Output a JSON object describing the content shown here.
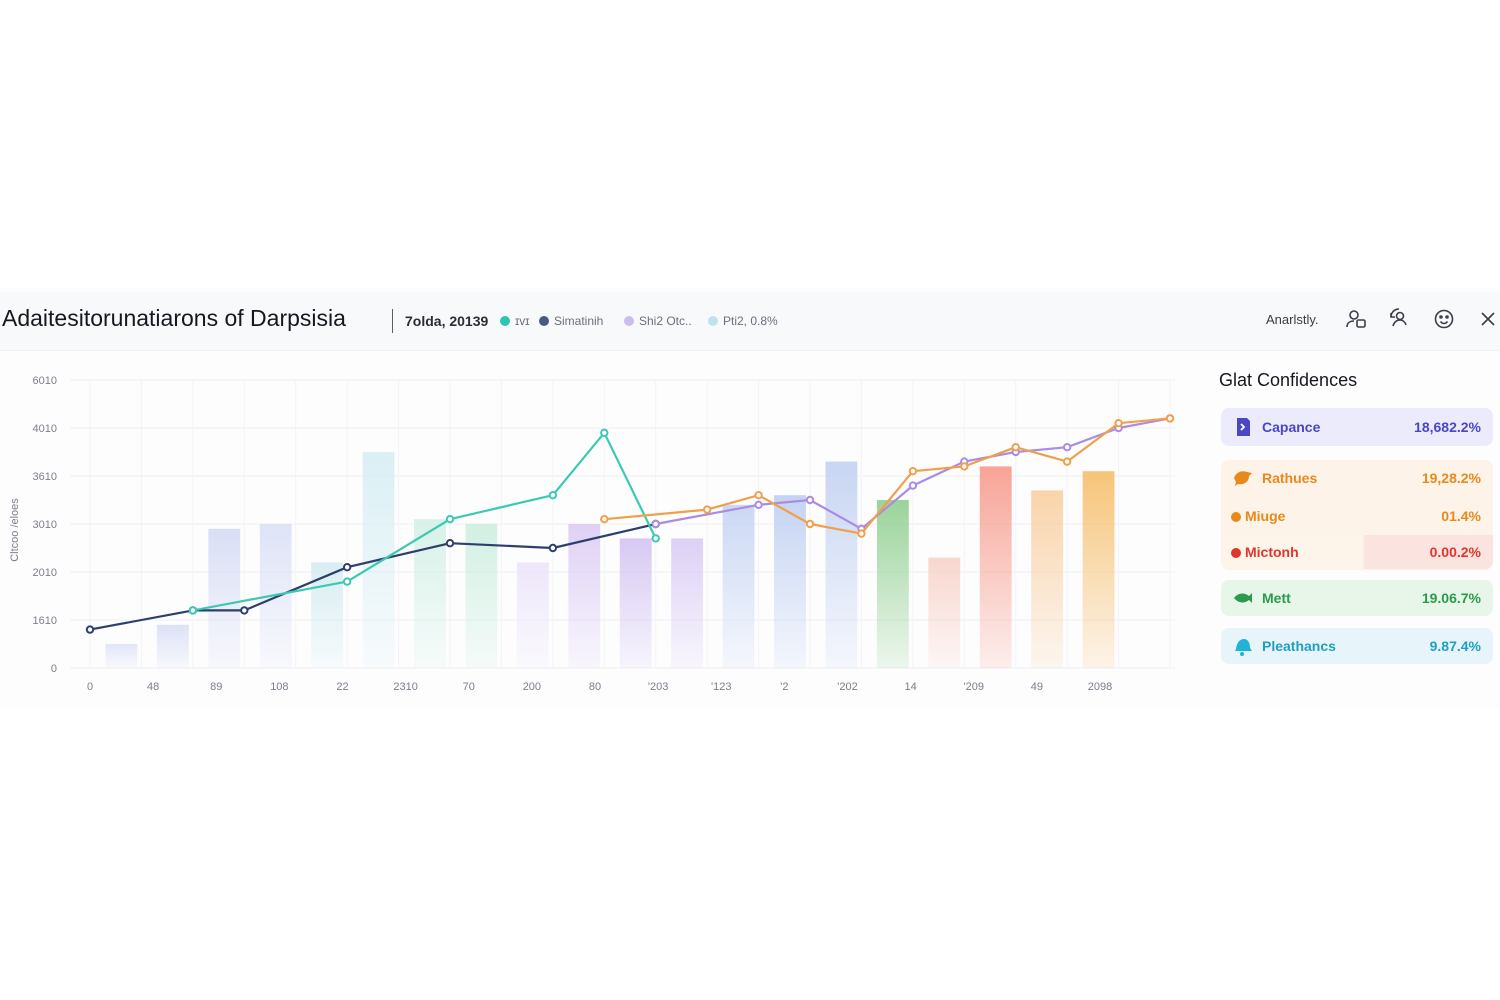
{
  "header": {
    "title": "Adaitesitorunatiarons of Darpsisia",
    "date": "7olda, 20139",
    "legend": [
      {
        "label": "ɪvɪ",
        "color": "#2ec4b6"
      },
      {
        "label": "Simatinih",
        "color": "#4a5a86"
      },
      {
        "label": "Shi2 Otc..",
        "color": "#cbbdf2"
      },
      {
        "label": "Pti2, 0.8%",
        "color": "#bfe3ee"
      }
    ],
    "analytics_label": "Anarlstly.",
    "icons": [
      "user-settings-icon",
      "refresh-user-icon",
      "emoji-icon",
      "close-icon"
    ]
  },
  "chart_data": {
    "type": "line",
    "y_ticks": [
      "6010",
      "4010",
      "3610",
      "3010",
      "2010",
      "1610",
      "0"
    ],
    "x_ticks": [
      "0",
      "48",
      "89",
      "108",
      "22",
      "2310",
      "70",
      "200",
      "80",
      "'203",
      "'123",
      "'2",
      "'202",
      "14",
      "'209",
      "49",
      "2098"
    ],
    "ylabel": "Cltcoo /eloes",
    "bars": [
      {
        "cat": 0,
        "value": 500,
        "color": "#dfe3f6"
      },
      {
        "cat": 1,
        "value": 900,
        "color": "#d9def4"
      },
      {
        "cat": 2,
        "value": 2900,
        "color": "#d6dbf4"
      },
      {
        "cat": 3,
        "value": 3000,
        "color": "#dbe0f6"
      },
      {
        "cat": 4,
        "value": 2200,
        "color": "#d4ecf1"
      },
      {
        "cat": 5,
        "value": 4500,
        "color": "#d6eef3"
      },
      {
        "cat": 6,
        "value": 3100,
        "color": "#d3f0e6"
      },
      {
        "cat": 7,
        "value": 3000,
        "color": "#cdeedf"
      },
      {
        "cat": 8,
        "value": 2200,
        "color": "#ece4fa"
      },
      {
        "cat": 9,
        "value": 3000,
        "color": "#dcccf4"
      },
      {
        "cat": 10,
        "value": 2700,
        "color": "#d3c3f2"
      },
      {
        "cat": 11,
        "value": 2700,
        "color": "#dacbf4"
      },
      {
        "cat": 12,
        "value": 3400,
        "color": "#c6d4f3"
      },
      {
        "cat": 13,
        "value": 3600,
        "color": "#bfcff2"
      },
      {
        "cat": 14,
        "value": 4300,
        "color": "#c2d1f2"
      },
      {
        "cat": 15,
        "value": 3500,
        "color": "#8fcf8f"
      },
      {
        "cat": 16,
        "value": 2300,
        "color": "#f8d2c8"
      },
      {
        "cat": 17,
        "value": 4200,
        "color": "#f79a8b"
      },
      {
        "cat": 18,
        "value": 3700,
        "color": "#f9cfa0"
      },
      {
        "cat": 19,
        "value": 4100,
        "color": "#f6be6b"
      }
    ],
    "series": [
      {
        "name": "Simatinih",
        "color": "#2e3f6e",
        "points": [
          [
            0,
            800
          ],
          [
            2,
            1200
          ],
          [
            3,
            1200
          ],
          [
            5,
            2100
          ],
          [
            7,
            2600
          ],
          [
            9,
            2500
          ],
          [
            11,
            3000
          ]
        ]
      },
      {
        "name": "ɪvɪ",
        "color": "#3cc9b1",
        "points": [
          [
            2,
            1200
          ],
          [
            5,
            1800
          ],
          [
            7,
            3100
          ],
          [
            9,
            3600
          ],
          [
            10,
            4900
          ],
          [
            11,
            2700
          ]
        ]
      },
      {
        "name": "Shi2 Otc..",
        "color": "#a98ce4",
        "points": [
          [
            11,
            3000
          ],
          [
            13,
            3400
          ],
          [
            14,
            3500
          ],
          [
            15,
            2900
          ],
          [
            16,
            3800
          ],
          [
            17,
            4300
          ],
          [
            18,
            4500
          ],
          [
            19,
            4600
          ],
          [
            20,
            5000
          ],
          [
            21,
            5200
          ]
        ]
      },
      {
        "name": "Pti2, 0.8%",
        "color": "#f0a04b",
        "points": [
          [
            10,
            3100
          ],
          [
            12,
            3300
          ],
          [
            13,
            3600
          ],
          [
            14,
            3000
          ],
          [
            15,
            2800
          ],
          [
            16,
            4100
          ],
          [
            17,
            4200
          ],
          [
            18,
            4600
          ],
          [
            19,
            4300
          ],
          [
            20,
            5100
          ],
          [
            21,
            5200
          ]
        ]
      }
    ]
  },
  "confidences": {
    "title": "Glat Confidences",
    "cards": [
      {
        "rows": [
          {
            "name": "Capance",
            "value": "18,682.2%",
            "color": "#4b46c6",
            "icon": "map-marker-icon",
            "bg": "#ecebfb"
          }
        ]
      },
      {
        "rows": [
          {
            "name": "Rathues",
            "value": "19,28.2%",
            "color": "#e8891b",
            "icon": "bird-icon",
            "bg": "#fdf2e6"
          },
          {
            "name": "Miuge",
            "value": "01.4%",
            "color": "#e8891b",
            "icon": "dot",
            "bg": "#fdf4ea"
          },
          {
            "name": "Mictonh",
            "value": "0.00.2%",
            "color": "#e0362b",
            "icon": "dot",
            "bg": "#fbe9e6"
          }
        ]
      },
      {
        "rows": [
          {
            "name": "Mett",
            "value": "19.06.7%",
            "color": "#2b9a4d",
            "icon": "fish-icon",
            "bg": "#e8f6ea"
          }
        ]
      },
      {
        "rows": [
          {
            "name": "Pleathancs",
            "value": "9.87.4%",
            "color": "#1f9fc2",
            "icon": "bell-icon",
            "bg": "#e7f5fb"
          }
        ]
      }
    ]
  }
}
